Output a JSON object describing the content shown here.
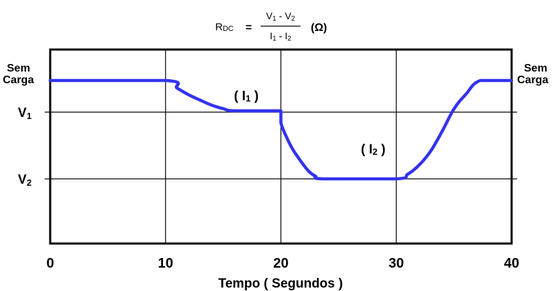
{
  "chart_data": {
    "type": "line",
    "xlabel": "Tempo ( Segundos )",
    "xlim": [
      0,
      40
    ],
    "xticks": [
      "0",
      "10",
      "20",
      "30",
      "40"
    ],
    "ylevels": {
      "sem_carga": 4,
      "v1": 3,
      "v2": 2,
      "min": 0.9
    },
    "ytick_labels": {
      "sem_carga_left": [
        "Sem",
        "Carga"
      ],
      "sem_carga_right": [
        "Sem",
        "Carga"
      ],
      "v1": {
        "main": "V",
        "sub": "1"
      },
      "v2": {
        "main": "V",
        "sub": "2"
      }
    },
    "grid": true,
    "line_color": "#3333ee",
    "series": [
      {
        "x": [
          0,
          10,
          11,
          12,
          13,
          14,
          15,
          16,
          20,
          20,
          20.5,
          21,
          21.5,
          22,
          22.5,
          23,
          23.7,
          30,
          31,
          32,
          33,
          34,
          35,
          36,
          37.3,
          40
        ],
        "values": [
          4,
          4,
          3.76,
          3.55,
          3.38,
          3.22,
          3.11,
          3.04,
          3.04,
          2.84,
          2.62,
          2.45,
          2.32,
          2.2,
          2.1,
          2.04,
          2.0,
          2.0,
          2.07,
          2.21,
          2.42,
          2.72,
          3.1,
          3.55,
          4.0,
          4.0
        ]
      }
    ],
    "annotations": [
      {
        "text": "I",
        "sub": "1",
        "x": 17,
        "y": 3.38
      },
      {
        "text": "I",
        "sub": "2",
        "x": 28,
        "y": 2.38
      }
    ],
    "formula": {
      "lhs_main": "R",
      "lhs_sub": "DC",
      "equals": "=",
      "num": [
        {
          "t": "V"
        },
        {
          "t": "1",
          "sub": true
        },
        {
          "t": " - V"
        },
        {
          "t": "2",
          "sub": true
        }
      ],
      "den": [
        {
          "t": "I"
        },
        {
          "t": "1",
          "sub": true
        },
        {
          "t": " - I"
        },
        {
          "t": "2",
          "sub": true
        }
      ],
      "unit": "(Ω)"
    }
  }
}
